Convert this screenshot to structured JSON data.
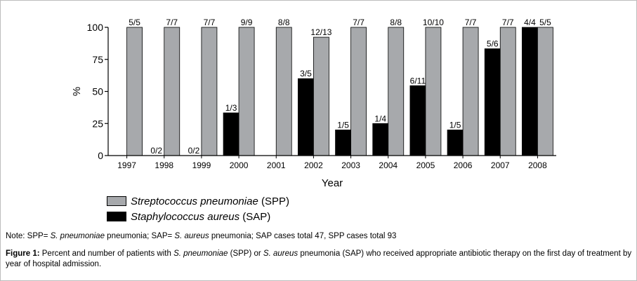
{
  "chart_data": {
    "type": "bar",
    "categories": [
      "1997",
      "1998",
      "1999",
      "2000",
      "2001",
      "2002",
      "2003",
      "2004",
      "2005",
      "2006",
      "2007",
      "2008"
    ],
    "series": [
      {
        "name": "Staphylococcus aureus (SAP)",
        "color": "#000000",
        "values": [
          0,
          0,
          0,
          33.3,
          0,
          60,
          20,
          25,
          54.5,
          20,
          83.3,
          100
        ],
        "labels": [
          "",
          "0/2",
          "0/2",
          "1/3",
          "",
          "3/5",
          "1/5",
          "1/4",
          "6/11",
          "1/5",
          "5/6",
          "4/4"
        ]
      },
      {
        "name": "Streptococcus pneumoniae (SPP)",
        "color": "#a7a9ac",
        "values": [
          100,
          100,
          100,
          100,
          100,
          92.3,
          100,
          100,
          100,
          100,
          100,
          100
        ],
        "labels": [
          "5/5",
          "7/7",
          "7/7",
          "9/9",
          "8/8",
          "12/13",
          "7/7",
          "8/8",
          "10/10",
          "7/7",
          "7/7",
          "5/5"
        ]
      }
    ],
    "xlabel": "Year",
    "ylabel": "%",
    "ylim": [
      0,
      100
    ],
    "yticks": [
      0,
      25,
      50,
      75,
      100
    ],
    "grid": false,
    "legend_placement": "bottom-left"
  },
  "legend": {
    "spp_name": "Streptococcus pneumoniae",
    "spp_abbr": " (SPP)",
    "sap_name": "Staphylococcus aureus",
    "sap_abbr": " (SAP)"
  },
  "note": {
    "prefix": "Note: SPP= ",
    "spp_italic": "S. pneumoniae",
    "mid": " pneumonia; SAP= ",
    "sap_italic": "S. aureus",
    "suffix": " pneumonia; SAP cases total 47, SPP cases total 93"
  },
  "caption": {
    "label": "Figure 1:",
    "text1": " Percent and number of patients with ",
    "spp_italic": "S. pneumoniae",
    "text2": " (SPP) or ",
    "sap_italic": "S. aureus",
    "text3": " pneumonia (SAP) who received appropriate antibiotic therapy on the first day of treatment by year of hospital admission."
  }
}
